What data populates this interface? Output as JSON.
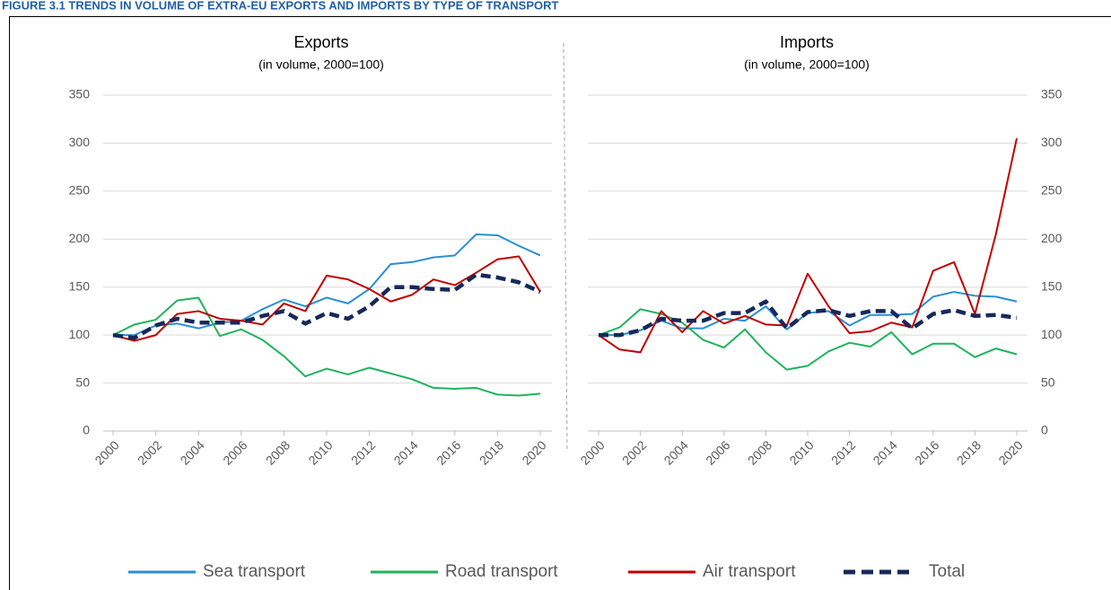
{
  "title": "FIGURE 3.1   TRENDS IN VOLUME OF EXTRA-EU EXPORTS AND IMPORTS BY TYPE OF TRANSPORT",
  "chart_data": [
    {
      "type": "line",
      "title": "Exports",
      "subtitle": "(in volume, 2000=100)",
      "y_axis_side": "left",
      "grid": true,
      "x": [
        2000,
        2001,
        2002,
        2003,
        2004,
        2005,
        2006,
        2007,
        2008,
        2009,
        2010,
        2011,
        2012,
        2013,
        2014,
        2015,
        2016,
        2017,
        2018,
        2019,
        2020
      ],
      "xlim": [
        2000,
        2020
      ],
      "xticks": [
        2000,
        2002,
        2004,
        2006,
        2008,
        2010,
        2012,
        2014,
        2016,
        2018,
        2020
      ],
      "ylim": [
        0,
        350
      ],
      "yticks": [
        0,
        50,
        100,
        150,
        200,
        250,
        300,
        350
      ],
      "series": [
        {
          "name": "Sea transport",
          "color": "#2a8fd0",
          "dashed": false,
          "values": [
            100,
            100,
            110,
            112,
            107,
            113,
            115,
            127,
            137,
            130,
            139,
            133,
            148,
            174,
            176,
            181,
            183,
            205,
            204,
            193,
            183
          ]
        },
        {
          "name": "Road transport",
          "color": "#1fb35c",
          "dashed": false,
          "values": [
            100,
            111,
            116,
            136,
            139,
            99,
            106,
            95,
            78,
            57,
            65,
            59,
            66,
            60,
            54,
            45,
            44,
            45,
            38,
            37,
            39
          ]
        },
        {
          "name": "Air transport",
          "color": "#c00000",
          "dashed": false,
          "values": [
            100,
            94,
            100,
            122,
            125,
            117,
            115,
            111,
            133,
            125,
            162,
            158,
            148,
            135,
            142,
            158,
            152,
            165,
            179,
            182,
            145
          ]
        },
        {
          "name": "Total",
          "color": "#17285a",
          "dashed": true,
          "values": [
            100,
            97,
            110,
            117,
            113,
            113,
            113,
            120,
            125,
            112,
            123,
            117,
            130,
            150,
            150,
            148,
            147,
            163,
            160,
            155,
            145
          ]
        }
      ]
    },
    {
      "type": "line",
      "title": "Imports",
      "subtitle": "(in volume, 2000=100)",
      "y_axis_side": "right",
      "grid": true,
      "x": [
        2000,
        2001,
        2002,
        2003,
        2004,
        2005,
        2006,
        2007,
        2008,
        2009,
        2010,
        2011,
        2012,
        2013,
        2014,
        2015,
        2016,
        2017,
        2018,
        2019,
        2020
      ],
      "xlim": [
        2000,
        2020
      ],
      "xticks": [
        2000,
        2002,
        2004,
        2006,
        2008,
        2010,
        2012,
        2014,
        2016,
        2018,
        2020
      ],
      "ylim": [
        0,
        350
      ],
      "yticks": [
        0,
        50,
        100,
        150,
        200,
        250,
        300,
        350
      ],
      "series": [
        {
          "color": "#2a8fd0",
          "dashed": false,
          "values": [
            100,
            100,
            105,
            115,
            107,
            107,
            117,
            115,
            130,
            106,
            123,
            125,
            110,
            121,
            121,
            122,
            140,
            145,
            141,
            140,
            135
          ]
        },
        {
          "color": "#1fb35c",
          "dashed": false,
          "values": [
            100,
            108,
            127,
            122,
            113,
            95,
            87,
            106,
            82,
            64,
            68,
            83,
            92,
            88,
            103,
            80,
            91,
            91,
            77,
            86,
            80
          ]
        },
        {
          "color": "#c00000",
          "dashed": false,
          "values": [
            100,
            85,
            82,
            125,
            103,
            125,
            112,
            120,
            111,
            110,
            164,
            130,
            102,
            104,
            113,
            108,
            167,
            176,
            122,
            205,
            305
          ]
        },
        {
          "color": "#17285a",
          "dashed": true,
          "values": [
            100,
            100,
            105,
            117,
            115,
            115,
            123,
            123,
            135,
            107,
            124,
            126,
            120,
            125,
            125,
            107,
            122,
            126,
            120,
            121,
            118
          ]
        }
      ]
    }
  ]
}
